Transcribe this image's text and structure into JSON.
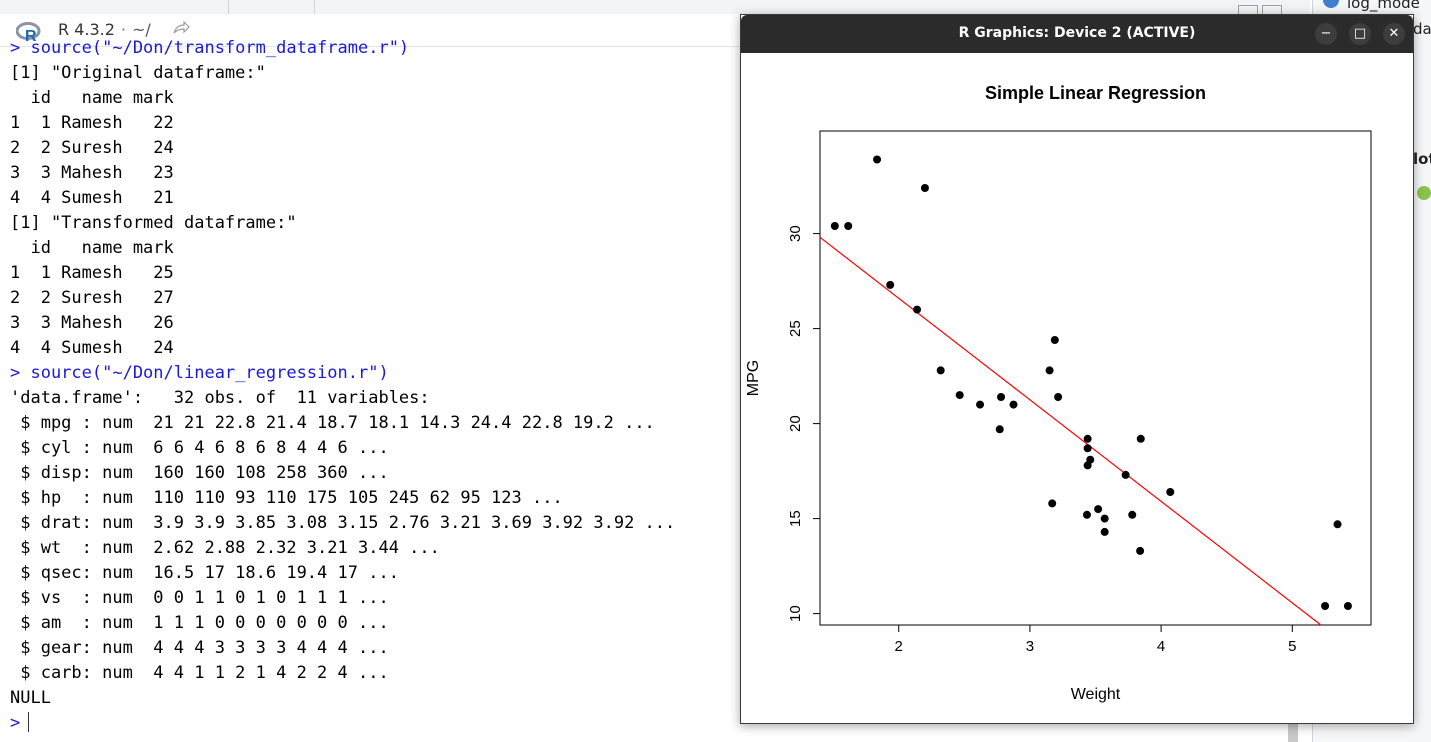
{
  "console": {
    "title": "R 4.3.2",
    "path": "~/",
    "lines": [
      {
        "text": "> source(\"~/Don/transform_dataframe.r\")",
        "kind": "cmd"
      },
      {
        "text": "[1] \"Original dataframe:\"",
        "kind": "out"
      },
      {
        "text": "  id   name mark",
        "kind": "out"
      },
      {
        "text": "1  1 Ramesh   22",
        "kind": "out"
      },
      {
        "text": "2  2 Suresh   24",
        "kind": "out"
      },
      {
        "text": "3  3 Mahesh   23",
        "kind": "out"
      },
      {
        "text": "4  4 Sumesh   21",
        "kind": "out"
      },
      {
        "text": "[1] \"Transformed dataframe:\"",
        "kind": "out"
      },
      {
        "text": "  id   name mark",
        "kind": "out"
      },
      {
        "text": "1  1 Ramesh   25",
        "kind": "out"
      },
      {
        "text": "2  2 Suresh   27",
        "kind": "out"
      },
      {
        "text": "3  3 Mahesh   26",
        "kind": "out"
      },
      {
        "text": "4  4 Sumesh   24",
        "kind": "out"
      },
      {
        "text": "> source(\"~/Don/linear_regression.r\")",
        "kind": "cmd"
      },
      {
        "text": "'data.frame':   32 obs. of  11 variables:",
        "kind": "out"
      },
      {
        "text": " $ mpg : num  21 21 22.8 21.4 18.7 18.1 14.3 24.4 22.8 19.2 ...",
        "kind": "out"
      },
      {
        "text": " $ cyl : num  6 6 4 6 8 6 8 4 4 6 ...",
        "kind": "out"
      },
      {
        "text": " $ disp: num  160 160 108 258 360 ...",
        "kind": "out"
      },
      {
        "text": " $ hp  : num  110 110 93 110 175 105 245 62 95 123 ...",
        "kind": "out"
      },
      {
        "text": " $ drat: num  3.9 3.9 3.85 3.08 3.15 2.76 3.21 3.69 3.92 3.92 ...",
        "kind": "out"
      },
      {
        "text": " $ wt  : num  2.62 2.88 2.32 3.21 3.44 ...",
        "kind": "out"
      },
      {
        "text": " $ qsec: num  16.5 17 18.6 19.4 17 ...",
        "kind": "out"
      },
      {
        "text": " $ vs  : num  0 0 1 1 0 1 0 1 1 1 ...",
        "kind": "out"
      },
      {
        "text": " $ am  : num  1 1 1 0 0 0 0 0 0 0 ...",
        "kind": "out"
      },
      {
        "text": " $ gear: num  4 4 4 3 3 3 3 4 4 4 ...",
        "kind": "out"
      },
      {
        "text": " $ carb: num  4 4 1 1 2 1 4 2 2 4 ...",
        "kind": "out"
      },
      {
        "text": "NULL",
        "kind": "out"
      }
    ],
    "prompt": ">"
  },
  "right_pane": {
    "item1": "log_mode",
    "item2": "da",
    "item3": "lot"
  },
  "graphics_window": {
    "title": "R Graphics: Device 2 (ACTIVE)",
    "minimize_label": "−",
    "maximize_label": "□",
    "close_label": "✕"
  },
  "chart_data": {
    "type": "scatter",
    "title": "Simple Linear Regression",
    "xlabel": "Weight",
    "ylabel": "MPG",
    "xlim": [
      1.4,
      5.6
    ],
    "ylim": [
      9.4,
      35.4
    ],
    "xticks": [
      2,
      3,
      4,
      5
    ],
    "yticks": [
      10,
      15,
      20,
      25,
      30
    ],
    "point_color": "#000000",
    "line_color": "#ff0000",
    "regression": {
      "intercept": 37.285,
      "slope": -5.344
    },
    "points": [
      [
        2.62,
        21.0
      ],
      [
        2.875,
        21.0
      ],
      [
        2.32,
        22.8
      ],
      [
        3.215,
        21.4
      ],
      [
        3.44,
        18.7
      ],
      [
        3.46,
        18.1
      ],
      [
        3.57,
        14.3
      ],
      [
        3.19,
        24.4
      ],
      [
        3.15,
        22.8
      ],
      [
        3.44,
        19.2
      ],
      [
        3.44,
        17.8
      ],
      [
        4.07,
        16.4
      ],
      [
        3.73,
        17.3
      ],
      [
        3.78,
        15.2
      ],
      [
        5.25,
        10.4
      ],
      [
        5.424,
        10.4
      ],
      [
        5.345,
        14.7
      ],
      [
        2.2,
        32.4
      ],
      [
        1.615,
        30.4
      ],
      [
        1.835,
        33.9
      ],
      [
        2.465,
        21.5
      ],
      [
        3.52,
        15.5
      ],
      [
        3.435,
        15.2
      ],
      [
        3.84,
        13.3
      ],
      [
        3.845,
        19.2
      ],
      [
        1.935,
        27.3
      ],
      [
        2.14,
        26.0
      ],
      [
        1.513,
        30.4
      ],
      [
        3.17,
        15.8
      ],
      [
        2.77,
        19.7
      ],
      [
        3.57,
        15.0
      ],
      [
        2.78,
        21.4
      ]
    ]
  }
}
